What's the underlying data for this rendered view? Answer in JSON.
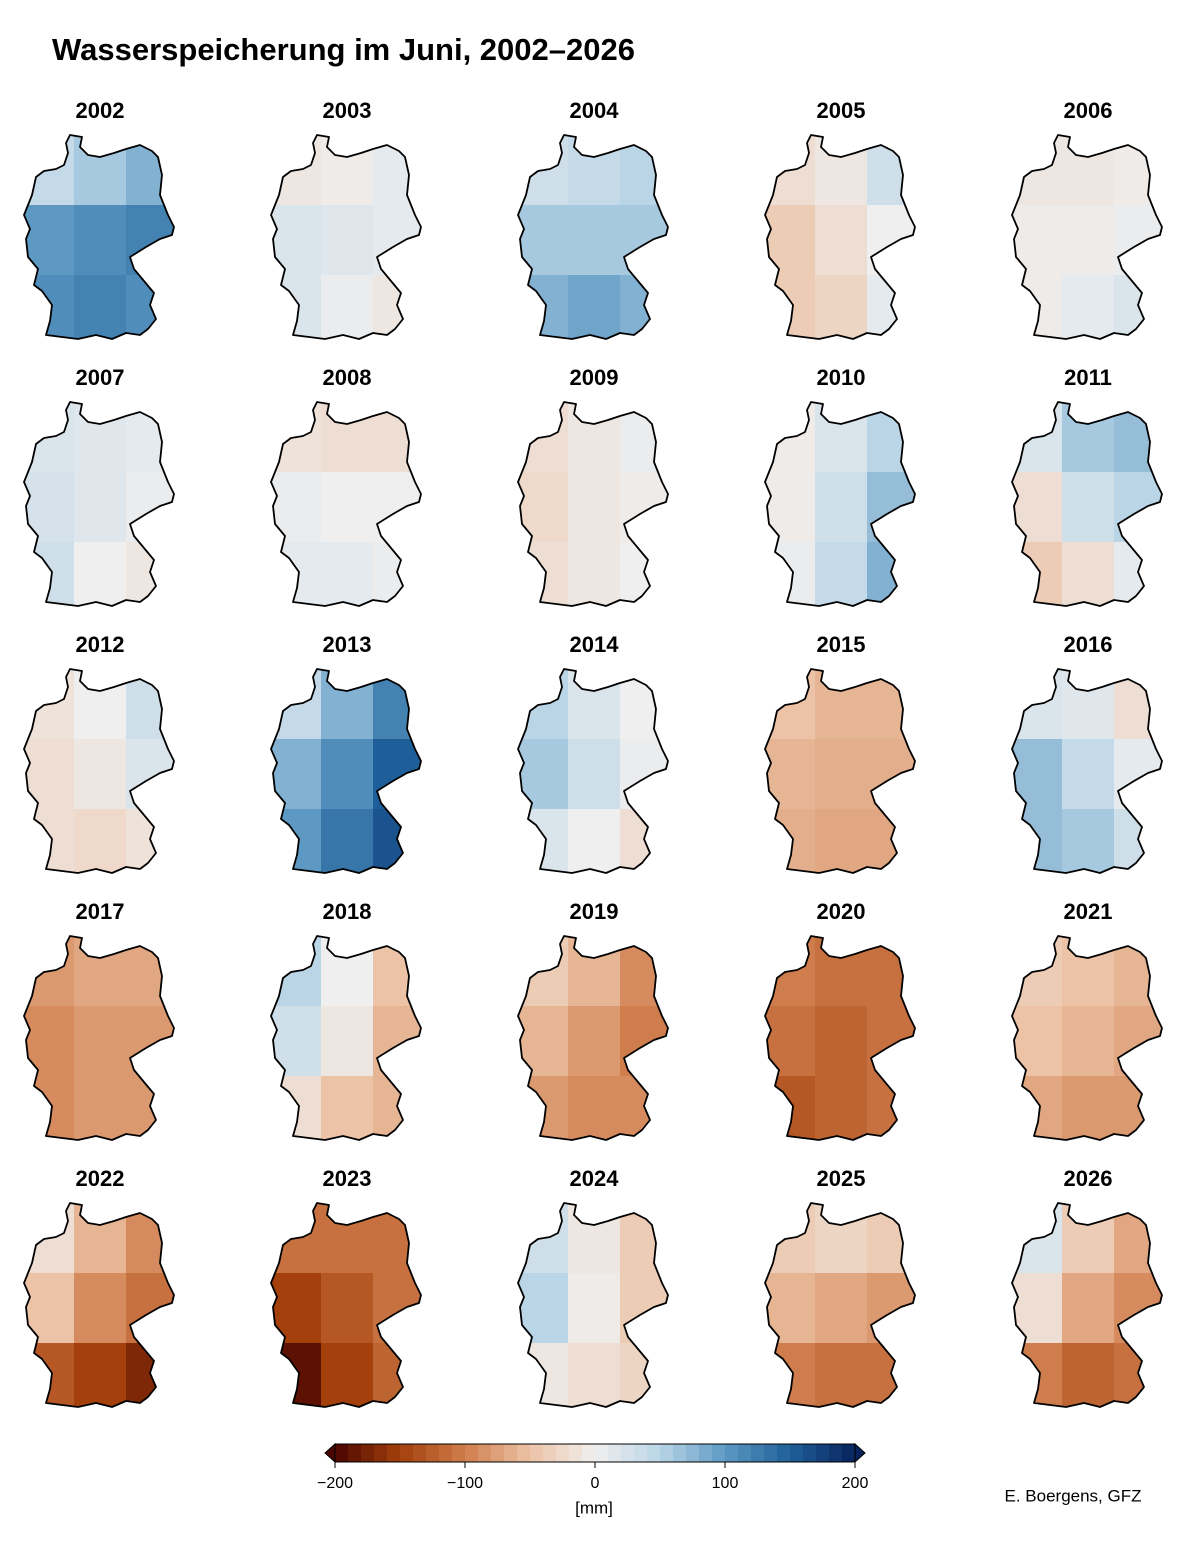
{
  "title": "Wasserspeicherung im Juni, 2002–2026",
  "panels": [
    {
      "year": "2002",
      "values": [
        [
          40,
          60,
          80
        ],
        [
          100,
          110,
          120
        ],
        [
          110,
          120,
          110
        ]
      ]
    },
    {
      "year": "2003",
      "values": [
        [
          -10,
          -5,
          10
        ],
        [
          20,
          15,
          10
        ],
        [
          20,
          5,
          -10
        ]
      ]
    },
    {
      "year": "2004",
      "values": [
        [
          30,
          40,
          50
        ],
        [
          60,
          60,
          60
        ],
        [
          80,
          90,
          80
        ]
      ]
    },
    {
      "year": "2005",
      "values": [
        [
          -20,
          -10,
          30
        ],
        [
          -40,
          -20,
          0
        ],
        [
          -40,
          -30,
          10
        ]
      ]
    },
    {
      "year": "2006",
      "values": [
        [
          -10,
          -10,
          -5
        ],
        [
          -5,
          -5,
          5
        ],
        [
          -5,
          10,
          20
        ]
      ]
    },
    {
      "year": "2007",
      "values": [
        [
          20,
          15,
          10
        ],
        [
          25,
          15,
          5
        ],
        [
          30,
          0,
          -10
        ]
      ]
    },
    {
      "year": "2008",
      "values": [
        [
          -15,
          -20,
          -20
        ],
        [
          5,
          0,
          0
        ],
        [
          10,
          10,
          5
        ]
      ]
    },
    {
      "year": "2009",
      "values": [
        [
          -20,
          -10,
          5
        ],
        [
          -25,
          -10,
          -5
        ],
        [
          -20,
          -10,
          0
        ]
      ]
    },
    {
      "year": "2010",
      "values": [
        [
          -5,
          20,
          50
        ],
        [
          -5,
          30,
          70
        ],
        [
          5,
          40,
          80
        ]
      ]
    },
    {
      "year": "2011",
      "values": [
        [
          20,
          60,
          70
        ],
        [
          -20,
          30,
          50
        ],
        [
          -40,
          -20,
          10
        ]
      ]
    },
    {
      "year": "2012",
      "values": [
        [
          -15,
          0,
          30
        ],
        [
          -20,
          -10,
          20
        ],
        [
          -20,
          -25,
          -15
        ]
      ]
    },
    {
      "year": "2013",
      "values": [
        [
          40,
          80,
          120
        ],
        [
          80,
          110,
          150
        ],
        [
          100,
          130,
          160
        ]
      ]
    },
    {
      "year": "2014",
      "values": [
        [
          50,
          20,
          0
        ],
        [
          60,
          30,
          5
        ],
        [
          20,
          0,
          -20
        ]
      ]
    },
    {
      "year": "2015",
      "values": [
        [
          -50,
          -60,
          -60
        ],
        [
          -60,
          -65,
          -65
        ],
        [
          -65,
          -70,
          -70
        ]
      ]
    },
    {
      "year": "2016",
      "values": [
        [
          20,
          15,
          -20
        ],
        [
          70,
          40,
          10
        ],
        [
          70,
          60,
          30
        ]
      ]
    },
    {
      "year": "2017",
      "values": [
        [
          -80,
          -70,
          -70
        ],
        [
          -90,
          -80,
          -80
        ],
        [
          -90,
          -80,
          -80
        ]
      ]
    },
    {
      "year": "2018",
      "values": [
        [
          50,
          0,
          -50
        ],
        [
          30,
          -10,
          -60
        ],
        [
          -20,
          -50,
          -60
        ]
      ]
    },
    {
      "year": "2019",
      "values": [
        [
          -40,
          -60,
          -90
        ],
        [
          -60,
          -80,
          -100
        ],
        [
          -80,
          -90,
          -90
        ]
      ]
    },
    {
      "year": "2020",
      "values": [
        [
          -100,
          -110,
          -110
        ],
        [
          -110,
          -120,
          -110
        ],
        [
          -130,
          -120,
          -110
        ]
      ]
    },
    {
      "year": "2021",
      "values": [
        [
          -40,
          -50,
          -60
        ],
        [
          -50,
          -60,
          -70
        ],
        [
          -70,
          -80,
          -80
        ]
      ]
    },
    {
      "year": "2022",
      "values": [
        [
          -20,
          -60,
          -90
        ],
        [
          -50,
          -90,
          -110
        ],
        [
          -130,
          -150,
          -170
        ]
      ]
    },
    {
      "year": "2023",
      "values": [
        [
          -110,
          -110,
          -110
        ],
        [
          -150,
          -130,
          -110
        ],
        [
          -190,
          -150,
          -120
        ]
      ]
    },
    {
      "year": "2024",
      "values": [
        [
          30,
          -10,
          -40
        ],
        [
          50,
          -5,
          -40
        ],
        [
          -10,
          -20,
          -30
        ]
      ]
    },
    {
      "year": "2025",
      "values": [
        [
          -40,
          -30,
          -40
        ],
        [
          -60,
          -70,
          -80
        ],
        [
          -100,
          -110,
          -110
        ]
      ]
    },
    {
      "year": "2026",
      "values": [
        [
          20,
          -40,
          -70
        ],
        [
          -20,
          -70,
          -90
        ],
        [
          -100,
          -120,
          -110
        ]
      ]
    }
  ],
  "colorbar": {
    "lim": [
      -200,
      200
    ],
    "ticks": [
      {
        "value": -200,
        "label": "−200"
      },
      {
        "value": -100,
        "label": "−100"
      },
      0,
      100,
      200
    ],
    "label": "[mm]",
    "colors": [
      "#4a0500",
      "#a3400c",
      "#cf7d4c",
      "#ecc3a6",
      "#efefef",
      "#bad5e6",
      "#5d99c3",
      "#1f5f99",
      "#08225c"
    ]
  },
  "credit": "E. Boergens, GFZ"
}
